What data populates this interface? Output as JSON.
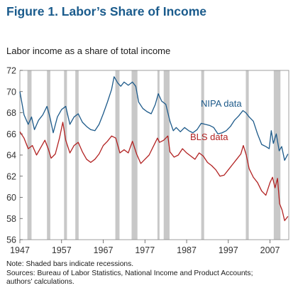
{
  "figure": {
    "title": "Figure 1. Labor’s Share of Income",
    "subtitle": "Labor income as a share of total income"
  },
  "notes": {
    "line1": "Note: Shaded bars indicate recessions.",
    "line2": "Sources: Bureau of Labor Statistics, National Income and Product Accounts;",
    "line3": "authors’ calculations."
  },
  "colors": {
    "nipa": "#1d5a8a",
    "bls": "#b22222",
    "recession": "#c8c8c8",
    "axis": "#555555",
    "frame": "#888888",
    "title": "#1a5b8c"
  },
  "chart_data": {
    "type": "line",
    "title": "",
    "xlabel": "",
    "ylabel": "",
    "xlim": [
      1947,
      2011.5
    ],
    "ylim": [
      56,
      72
    ],
    "grid": false,
    "x_ticks": [
      1947,
      1957,
      1967,
      1977,
      1987,
      1997,
      2007
    ],
    "y_ticks": [
      56,
      58,
      60,
      62,
      64,
      66,
      68,
      70,
      72
    ],
    "recessions": [
      [
        1948.8,
        1949.8
      ],
      [
        1953.5,
        1954.3
      ],
      [
        1957.6,
        1958.3
      ],
      [
        1960.3,
        1961.1
      ],
      [
        1969.9,
        1970.9
      ],
      [
        1973.8,
        1975.2
      ],
      [
        1980.0,
        1980.5
      ],
      [
        1981.5,
        1982.9
      ],
      [
        1990.5,
        1991.2
      ],
      [
        2001.2,
        2001.9
      ],
      [
        2007.9,
        2009.5
      ]
    ],
    "series": [
      {
        "name": "NIPA data",
        "points": [
          [
            1947.0,
            70.0
          ],
          [
            1948.0,
            67.8
          ],
          [
            1949.0,
            66.9
          ],
          [
            1949.8,
            67.6
          ],
          [
            1950.5,
            66.4
          ],
          [
            1951.5,
            67.3
          ],
          [
            1952.5,
            67.8
          ],
          [
            1953.5,
            68.6
          ],
          [
            1954.2,
            67.6
          ],
          [
            1955.0,
            66.1
          ],
          [
            1956.0,
            67.6
          ],
          [
            1957.0,
            68.3
          ],
          [
            1958.0,
            68.6
          ],
          [
            1959.0,
            66.9
          ],
          [
            1960.0,
            67.6
          ],
          [
            1961.0,
            67.9
          ],
          [
            1962.0,
            67.1
          ],
          [
            1963.0,
            66.7
          ],
          [
            1964.0,
            66.4
          ],
          [
            1965.0,
            66.3
          ],
          [
            1966.0,
            66.9
          ],
          [
            1967.0,
            67.9
          ],
          [
            1968.0,
            69.0
          ],
          [
            1969.0,
            70.2
          ],
          [
            1969.6,
            71.4
          ],
          [
            1970.5,
            70.8
          ],
          [
            1971.2,
            70.5
          ],
          [
            1972.0,
            70.9
          ],
          [
            1973.0,
            70.6
          ],
          [
            1974.0,
            70.9
          ],
          [
            1974.8,
            70.5
          ],
          [
            1975.5,
            69.0
          ],
          [
            1976.5,
            68.4
          ],
          [
            1977.5,
            68.1
          ],
          [
            1978.5,
            67.9
          ],
          [
            1979.5,
            68.8
          ],
          [
            1980.2,
            69.8
          ],
          [
            1981.0,
            69.1
          ],
          [
            1982.0,
            68.8
          ],
          [
            1983.0,
            67.2
          ],
          [
            1983.8,
            66.3
          ],
          [
            1984.5,
            66.6
          ],
          [
            1985.5,
            66.2
          ],
          [
            1986.5,
            66.6
          ],
          [
            1987.5,
            66.3
          ],
          [
            1988.5,
            66.1
          ],
          [
            1989.5,
            66.4
          ],
          [
            1990.5,
            67.0
          ],
          [
            1991.5,
            66.9
          ],
          [
            1992.5,
            66.8
          ],
          [
            1993.5,
            66.6
          ],
          [
            1994.5,
            66.0
          ],
          [
            1995.5,
            66.1
          ],
          [
            1996.5,
            66.3
          ],
          [
            1997.5,
            66.7
          ],
          [
            1998.5,
            67.3
          ],
          [
            1999.5,
            67.7
          ],
          [
            2000.5,
            68.2
          ],
          [
            2001.2,
            68.0
          ],
          [
            2002.0,
            67.6
          ],
          [
            2003.0,
            67.2
          ],
          [
            2004.0,
            66.0
          ],
          [
            2005.0,
            65.0
          ],
          [
            2006.0,
            64.8
          ],
          [
            2006.8,
            64.6
          ],
          [
            2007.3,
            66.3
          ],
          [
            2007.8,
            65.1
          ],
          [
            2008.5,
            66.0
          ],
          [
            2009.2,
            64.4
          ],
          [
            2009.8,
            64.8
          ],
          [
            2010.5,
            63.5
          ],
          [
            2011.3,
            64.1
          ]
        ]
      },
      {
        "name": "BLS data",
        "points": [
          [
            1947.0,
            66.2
          ],
          [
            1948.0,
            65.6
          ],
          [
            1949.0,
            64.6
          ],
          [
            1950.0,
            64.9
          ],
          [
            1951.0,
            64.0
          ],
          [
            1952.0,
            64.7
          ],
          [
            1953.0,
            65.4
          ],
          [
            1953.8,
            64.6
          ],
          [
            1954.5,
            63.7
          ],
          [
            1955.5,
            64.1
          ],
          [
            1956.5,
            65.6
          ],
          [
            1957.3,
            67.1
          ],
          [
            1958.0,
            65.4
          ],
          [
            1959.0,
            64.2
          ],
          [
            1960.0,
            64.9
          ],
          [
            1961.0,
            65.2
          ],
          [
            1962.0,
            64.3
          ],
          [
            1963.0,
            63.6
          ],
          [
            1964.0,
            63.3
          ],
          [
            1965.0,
            63.6
          ],
          [
            1966.0,
            64.1
          ],
          [
            1967.0,
            64.9
          ],
          [
            1968.0,
            65.3
          ],
          [
            1969.0,
            65.8
          ],
          [
            1970.0,
            65.6
          ],
          [
            1971.0,
            64.2
          ],
          [
            1972.0,
            64.5
          ],
          [
            1973.0,
            64.2
          ],
          [
            1974.0,
            65.3
          ],
          [
            1975.0,
            64.1
          ],
          [
            1976.0,
            63.2
          ],
          [
            1977.0,
            63.6
          ],
          [
            1978.0,
            64.0
          ],
          [
            1979.0,
            64.8
          ],
          [
            1980.0,
            65.6
          ],
          [
            1980.5,
            65.2
          ],
          [
            1981.5,
            65.4
          ],
          [
            1982.5,
            65.8
          ],
          [
            1983.0,
            64.3
          ],
          [
            1984.0,
            63.8
          ],
          [
            1985.0,
            64.0
          ],
          [
            1986.0,
            64.6
          ],
          [
            1987.0,
            64.2
          ],
          [
            1988.0,
            63.9
          ],
          [
            1989.0,
            63.6
          ],
          [
            1990.0,
            64.2
          ],
          [
            1991.0,
            63.9
          ],
          [
            1992.0,
            63.3
          ],
          [
            1993.0,
            63.0
          ],
          [
            1994.0,
            62.6
          ],
          [
            1995.0,
            62.0
          ],
          [
            1996.0,
            62.1
          ],
          [
            1997.0,
            62.6
          ],
          [
            1998.0,
            63.1
          ],
          [
            1999.0,
            63.6
          ],
          [
            2000.0,
            64.1
          ],
          [
            2000.6,
            64.9
          ],
          [
            2001.3,
            64.0
          ],
          [
            2002.0,
            62.7
          ],
          [
            2003.0,
            61.9
          ],
          [
            2004.0,
            61.4
          ],
          [
            2005.0,
            60.6
          ],
          [
            2006.0,
            60.2
          ],
          [
            2007.0,
            61.4
          ],
          [
            2007.6,
            61.9
          ],
          [
            2008.2,
            60.9
          ],
          [
            2008.8,
            61.8
          ],
          [
            2009.3,
            59.4
          ],
          [
            2009.9,
            58.8
          ],
          [
            2010.5,
            57.8
          ],
          [
            2011.3,
            58.2
          ]
        ]
      }
    ],
    "annotations": [
      {
        "text": "NIPA data",
        "series": "NIPA data"
      },
      {
        "text": "BLS data",
        "series": "BLS data"
      }
    ]
  }
}
